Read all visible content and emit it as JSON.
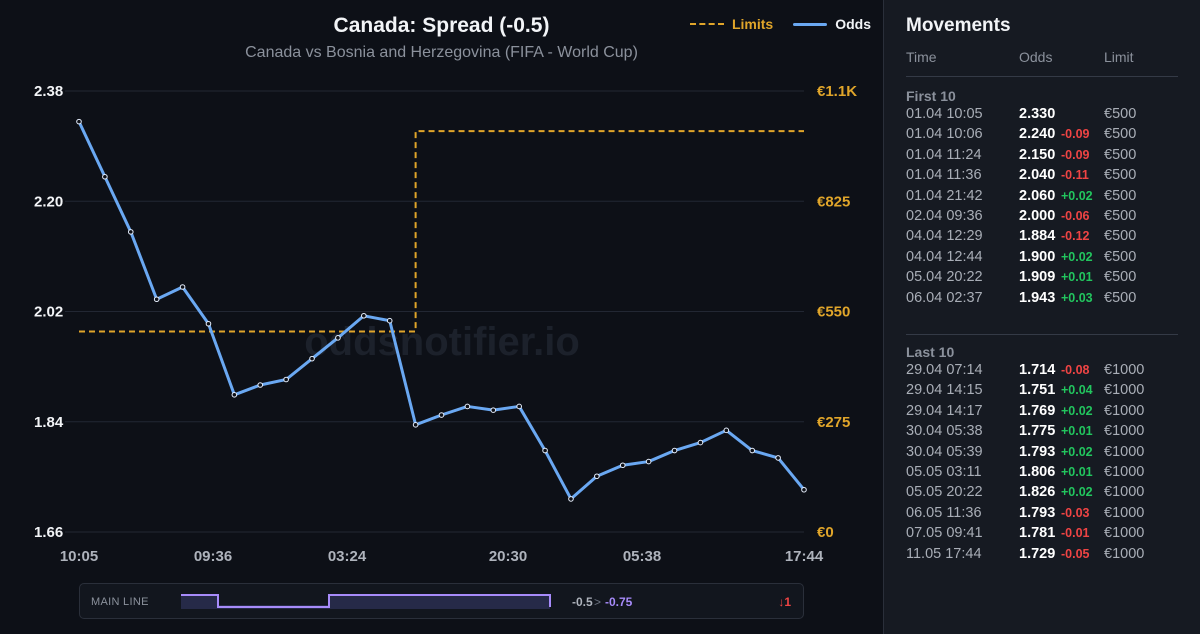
{
  "chart": {
    "title": "Canada: Spread (-0.5)",
    "subtitle": "Canada vs Bosnia and Herzegovina (FIFA - World Cup)",
    "legend": {
      "limits_label": "Limits",
      "odds_label": "Odds"
    },
    "watermark": "oddsnotifier.io"
  },
  "chart_data": {
    "type": "line",
    "y_left_ticks": [
      "2.38",
      "2.20",
      "2.02",
      "1.84",
      "1.66"
    ],
    "y_left_range": [
      1.66,
      2.38
    ],
    "y_right_ticks": [
      "€1.1K",
      "€825",
      "€550",
      "€275",
      "€0"
    ],
    "y_right_range": [
      0,
      1100
    ],
    "x_tick_labels": [
      "10:05",
      "09:36",
      "03:24",
      "20:30",
      "05:38",
      "17:44"
    ],
    "series": [
      {
        "name": "Odds",
        "color": "#6aa8f2",
        "values": [
          2.33,
          2.24,
          2.15,
          2.04,
          2.06,
          2.0,
          1.884,
          1.9,
          1.909,
          1.943,
          1.977,
          2.013,
          2.005,
          1.835,
          1.851,
          1.865,
          1.859,
          1.865,
          1.793,
          1.714,
          1.751,
          1.769,
          1.775,
          1.793,
          1.806,
          1.826,
          1.793,
          1.781,
          1.729
        ]
      },
      {
        "name": "Limits",
        "color": "#e0a52a",
        "style": "dashed",
        "values": [
          500,
          500,
          500,
          500,
          500,
          500,
          500,
          500,
          500,
          500,
          500,
          500,
          500,
          1000,
          1000,
          1000,
          1000,
          1000,
          1000,
          1000,
          1000,
          1000,
          1000,
          1000,
          1000,
          1000,
          1000,
          1000,
          1000
        ]
      }
    ],
    "grid": true,
    "legend_position": "top-right"
  },
  "main_line": {
    "label": "MAIN LINE",
    "from": "-0.5",
    "arrow": ">",
    "to": "-0.75",
    "change": "↓1",
    "color": "#a78bfa"
  },
  "movements": {
    "title": "Movements",
    "columns": {
      "time": "Time",
      "odds": "Odds",
      "limit": "Limit"
    },
    "first": {
      "title": "First 10",
      "rows": [
        {
          "time": "01.04 10:05",
          "odds": "2.330",
          "delta": "",
          "limit": "€500"
        },
        {
          "time": "01.04 10:06",
          "odds": "2.240",
          "delta": "-0.09",
          "limit": "€500"
        },
        {
          "time": "01.04 11:24",
          "odds": "2.150",
          "delta": "-0.09",
          "limit": "€500"
        },
        {
          "time": "01.04 11:36",
          "odds": "2.040",
          "delta": "-0.11",
          "limit": "€500"
        },
        {
          "time": "01.04 21:42",
          "odds": "2.060",
          "delta": "+0.02",
          "limit": "€500"
        },
        {
          "time": "02.04 09:36",
          "odds": "2.000",
          "delta": "-0.06",
          "limit": "€500"
        },
        {
          "time": "04.04 12:29",
          "odds": "1.884",
          "delta": "-0.12",
          "limit": "€500"
        },
        {
          "time": "04.04 12:44",
          "odds": "1.900",
          "delta": "+0.02",
          "limit": "€500"
        },
        {
          "time": "05.04 20:22",
          "odds": "1.909",
          "delta": "+0.01",
          "limit": "€500"
        },
        {
          "time": "06.04 02:37",
          "odds": "1.943",
          "delta": "+0.03",
          "limit": "€500"
        }
      ]
    },
    "last": {
      "title": "Last 10",
      "rows": [
        {
          "time": "29.04 07:14",
          "odds": "1.714",
          "delta": "-0.08",
          "limit": "€1000"
        },
        {
          "time": "29.04 14:15",
          "odds": "1.751",
          "delta": "+0.04",
          "limit": "€1000"
        },
        {
          "time": "29.04 14:17",
          "odds": "1.769",
          "delta": "+0.02",
          "limit": "€1000"
        },
        {
          "time": "30.04 05:38",
          "odds": "1.775",
          "delta": "+0.01",
          "limit": "€1000"
        },
        {
          "time": "30.04 05:39",
          "odds": "1.793",
          "delta": "+0.02",
          "limit": "€1000"
        },
        {
          "time": "05.05 03:11",
          "odds": "1.806",
          "delta": "+0.01",
          "limit": "€1000"
        },
        {
          "time": "05.05 20:22",
          "odds": "1.826",
          "delta": "+0.02",
          "limit": "€1000"
        },
        {
          "time": "06.05 11:36",
          "odds": "1.793",
          "delta": "-0.03",
          "limit": "€1000"
        },
        {
          "time": "07.05 09:41",
          "odds": "1.781",
          "delta": "-0.01",
          "limit": "€1000"
        },
        {
          "time": "11.05 17:44",
          "odds": "1.729",
          "delta": "-0.05",
          "limit": "€1000"
        }
      ]
    }
  }
}
